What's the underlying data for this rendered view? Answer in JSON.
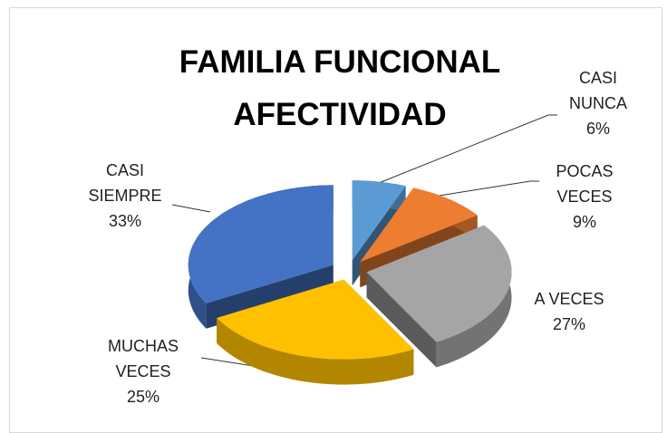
{
  "chart_data": {
    "type": "pie",
    "title": "FAMILIA FUNCIONAL AFECTIVIDAD",
    "categories": [
      "CASI NUNCA",
      "POCAS VECES",
      "A VECES",
      "MUCHAS VECES",
      "CASI SIEMPRE"
    ],
    "values": [
      6,
      9,
      27,
      25,
      33
    ],
    "value_labels": [
      "6%",
      "9%",
      "27%",
      "25%",
      "33%"
    ],
    "colors": [
      "#5b9bd5",
      "#ed7d31",
      "#a5a5a5",
      "#ffc000",
      "#4472c4"
    ]
  }
}
